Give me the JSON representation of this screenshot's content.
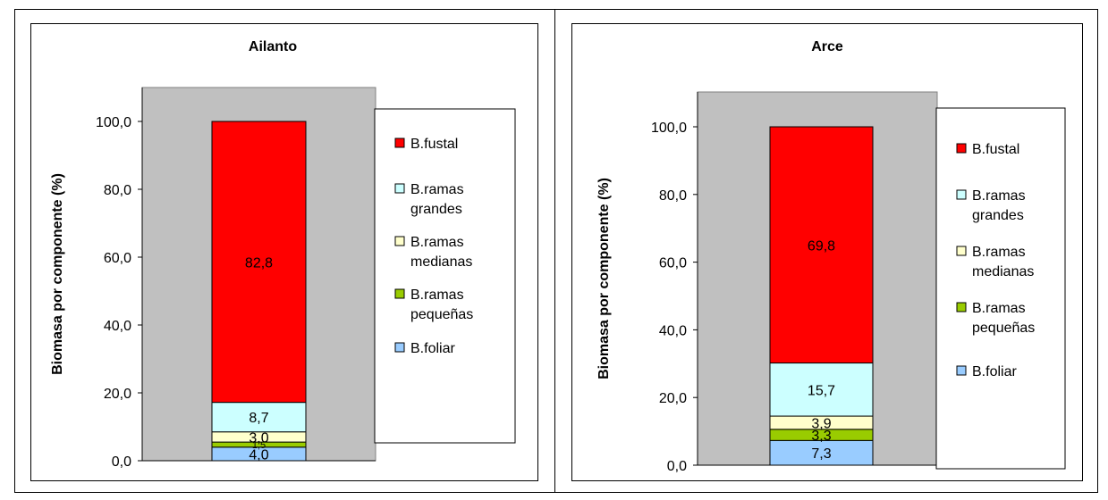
{
  "chart_data": [
    {
      "type": "bar",
      "stacked": true,
      "title": "Ailanto",
      "ylabel": "Biomasa por componente (%)",
      "xlabel": "",
      "ylim": [
        0,
        100
      ],
      "yticks": [
        "0,0",
        "20,0",
        "40,0",
        "60,0",
        "80,0",
        "100,0"
      ],
      "series": [
        {
          "name": "B.foliar",
          "value": 4.0,
          "label": "4,0",
          "color": "#99ccff"
        },
        {
          "name": "B.ramas pequeñas",
          "value": 1.5,
          "label": "1,5",
          "color": "#99cc00"
        },
        {
          "name": "B.ramas medianas",
          "value": 3.0,
          "label": "3,0",
          "color": "#ffffcc"
        },
        {
          "name": "B.ramas grandes",
          "value": 8.7,
          "label": "8,7",
          "color": "#ccffff"
        },
        {
          "name": "B.fustal",
          "value": 82.8,
          "label": "82,8",
          "color": "#ff0000"
        }
      ],
      "legend": [
        {
          "line1": "B.fustal",
          "line2": "",
          "color": "#ff0000"
        },
        {
          "line1": "B.ramas",
          "line2": "grandes",
          "color": "#ccffff"
        },
        {
          "line1": "B.ramas",
          "line2": "medianas",
          "color": "#ffffcc"
        },
        {
          "line1": "B.ramas",
          "line2": "pequeñas",
          "color": "#99cc00"
        },
        {
          "line1": "B.foliar",
          "line2": "",
          "color": "#99ccff"
        }
      ],
      "legend_position": "right",
      "plot_background": "#c0c0c0",
      "grid": false
    },
    {
      "type": "bar",
      "stacked": true,
      "title": "Arce",
      "ylabel": "Biomasa por componente (%)",
      "xlabel": "",
      "ylim": [
        0,
        100
      ],
      "yticks": [
        "0,0",
        "20,0",
        "40,0",
        "60,0",
        "80,0",
        "100,0"
      ],
      "series": [
        {
          "name": "B.foliar",
          "value": 7.3,
          "label": "7,3",
          "color": "#99ccff"
        },
        {
          "name": "B.ramas pequeñas",
          "value": 3.3,
          "label": "3,3",
          "color": "#99cc00"
        },
        {
          "name": "B.ramas medianas",
          "value": 3.9,
          "label": "3,9",
          "color": "#ffffcc"
        },
        {
          "name": "B.ramas grandes",
          "value": 15.7,
          "label": "15,7",
          "color": "#ccffff"
        },
        {
          "name": "B.fustal",
          "value": 69.8,
          "label": "69,8",
          "color": "#ff0000"
        }
      ],
      "legend": [
        {
          "line1": "B.fustal",
          "line2": "",
          "color": "#ff0000"
        },
        {
          "line1": "B.ramas",
          "line2": "grandes",
          "color": "#ccffff"
        },
        {
          "line1": "B.ramas",
          "line2": "medianas",
          "color": "#ffffcc"
        },
        {
          "line1": "B.ramas",
          "line2": "pequeñas",
          "color": "#99cc00"
        },
        {
          "line1": "B.foliar",
          "line2": "",
          "color": "#99ccff"
        }
      ],
      "legend_position": "right",
      "plot_background": "#c0c0c0",
      "grid": false
    }
  ]
}
